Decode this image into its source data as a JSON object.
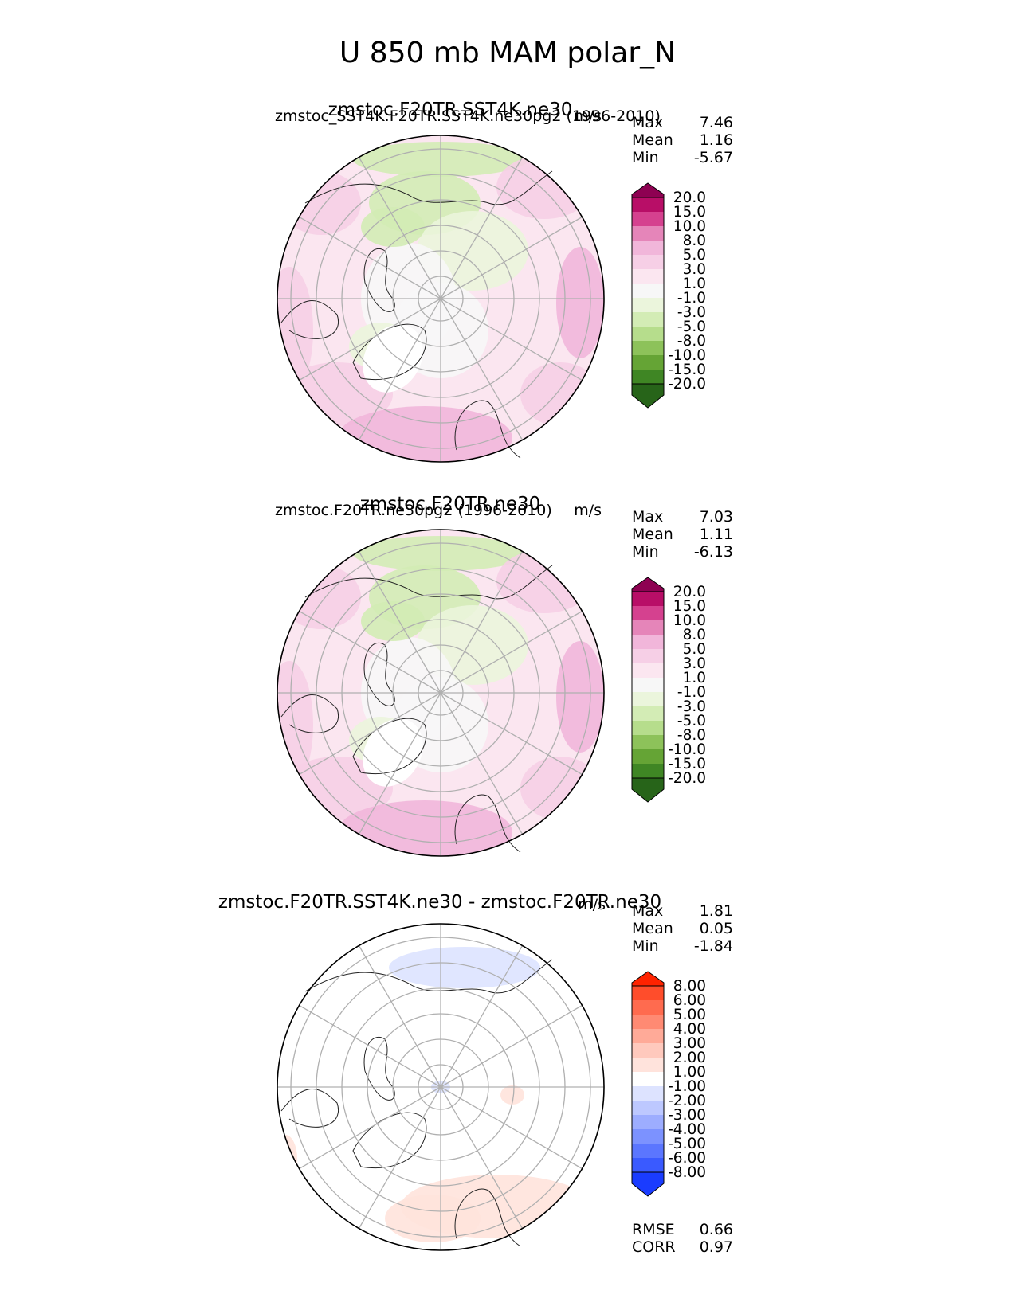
{
  "figure_title": "U 850 mb MAM polar_N",
  "chart_data": [
    {
      "type": "heatmap",
      "projection": "north-polar-stereographic",
      "left_title": "zmstoc_SST4K.F20TR.SST4K.ne30pg2 (1996-2010)",
      "center_title": "zmstoc.F20TR.SST4K.ne30",
      "right_title": "m/s",
      "stats": [
        {
          "label": "Max",
          "value": "7.46"
        },
        {
          "label": "Mean",
          "value": "1.16"
        },
        {
          "label": "Min",
          "value": "-5.67"
        }
      ],
      "colorbar": {
        "levels": [
          "20.0",
          "15.0",
          "10.0",
          "8.0",
          "5.0",
          "3.0",
          "1.0",
          "-1.0",
          "-3.0",
          "-5.0",
          "-8.0",
          "-10.0",
          "-15.0",
          "-20.0"
        ],
        "colors": [
          "#8e0152",
          "#b80e67",
          "#d5418f",
          "#e585b9",
          "#f1b6da",
          "#f6cfe6",
          "#fbe6f0",
          "#f7f7f7",
          "#ebf5dc",
          "#d3ecb5",
          "#b6dd8c",
          "#8dc25a",
          "#65a435",
          "#3f8624",
          "#276419"
        ],
        "extend": "both"
      },
      "summary_stats": []
    },
    {
      "type": "heatmap",
      "projection": "north-polar-stereographic",
      "left_title": "zmstoc.F20TR.ne30pg2 (1996-2010)",
      "center_title": "zmstoc.F20TR.ne30",
      "right_title": "m/s",
      "stats": [
        {
          "label": "Max",
          "value": "7.03"
        },
        {
          "label": "Mean",
          "value": "1.11"
        },
        {
          "label": "Min",
          "value": "-6.13"
        }
      ],
      "colorbar": {
        "levels": [
          "20.0",
          "15.0",
          "10.0",
          "8.0",
          "5.0",
          "3.0",
          "1.0",
          "-1.0",
          "-3.0",
          "-5.0",
          "-8.0",
          "-10.0",
          "-15.0",
          "-20.0"
        ],
        "colors": [
          "#8e0152",
          "#b80e67",
          "#d5418f",
          "#e585b9",
          "#f1b6da",
          "#f6cfe6",
          "#fbe6f0",
          "#f7f7f7",
          "#ebf5dc",
          "#d3ecb5",
          "#b6dd8c",
          "#8dc25a",
          "#65a435",
          "#3f8624",
          "#276419"
        ],
        "extend": "both"
      },
      "summary_stats": []
    },
    {
      "type": "heatmap",
      "projection": "north-polar-stereographic",
      "left_title": "",
      "center_title": "zmstoc.F20TR.SST4K.ne30 - zmstoc.F20TR.ne30",
      "right_title": "m/s",
      "stats": [
        {
          "label": "Max",
          "value": "1.81"
        },
        {
          "label": "Mean",
          "value": "0.05"
        },
        {
          "label": "Min",
          "value": "-1.84"
        }
      ],
      "colorbar": {
        "levels": [
          "8.00",
          "6.00",
          "5.00",
          "4.00",
          "3.00",
          "2.00",
          "1.00",
          "-1.00",
          "-2.00",
          "-3.00",
          "-4.00",
          "-5.00",
          "-6.00",
          "-8.00"
        ],
        "colors": [
          "#ff2300",
          "#ff4d2b",
          "#ff6b4f",
          "#ff8a73",
          "#ffaa98",
          "#ffc9bd",
          "#ffe3dc",
          "#ffffff",
          "#dde3ff",
          "#bdc8ff",
          "#9dadff",
          "#7c92ff",
          "#5b76ff",
          "#3a5aff",
          "#1a3cff"
        ],
        "extend": "both"
      },
      "summary_stats": [
        {
          "label": "RMSE",
          "value": "0.66"
        },
        {
          "label": "CORR",
          "value": "0.97"
        }
      ]
    }
  ]
}
